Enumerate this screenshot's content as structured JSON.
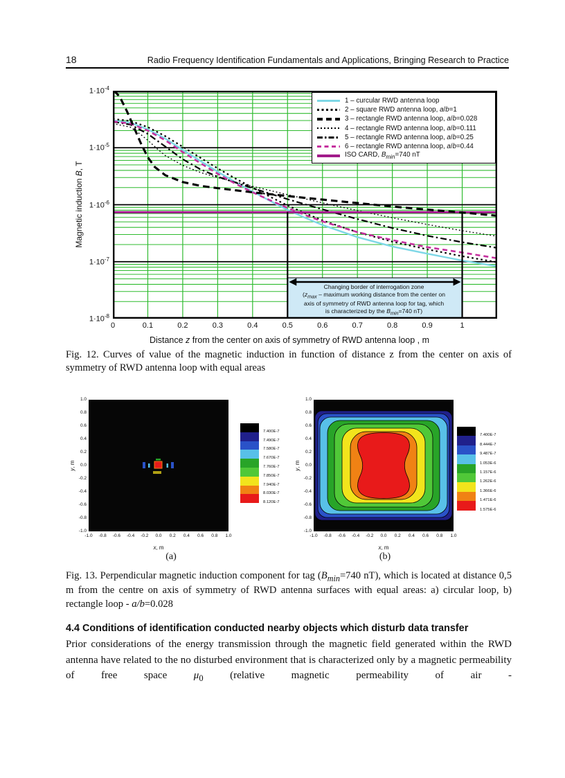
{
  "page": {
    "number": "18",
    "header_title": "Radio Frequency Identification Fundamentals and Applications, Bringing Research to Practice"
  },
  "fig12": {
    "ylabel_html": "Magnetic induction <i>B</i>, T",
    "xlabel_html": "Distance <i>z</i> from the center on axis of symmetry of RWD antenna loop ,  m",
    "y_tick_exponents": [
      "-4",
      "-5",
      "-6",
      "-7",
      "-8"
    ],
    "x_ticks": [
      "0",
      "0.1",
      "0.2",
      "0.3",
      "0.4",
      "0.5",
      "0.6",
      "0.7",
      "0.8",
      "0.9",
      "1"
    ],
    "legend": [
      {
        "id": "c1",
        "label_html": "1 – curcular RWD antenna loop"
      },
      {
        "id": "c2",
        "label_html": "2 – square RWD antenna loop, <i>a</i>/<i>b</i>=1"
      },
      {
        "id": "c3",
        "label_html": "3 – rectangle RWD antenna loop, <i>a</i>/<i>b</i>=0.028"
      },
      {
        "id": "c4",
        "label_html": "4 – rectangle RWD antenna loop, <i>a</i>/<i>b</i>=0.111"
      },
      {
        "id": "c5",
        "label_html": "5 – rectangle RWD antenna loop, <i>a</i>/<i>b</i>=0.25"
      },
      {
        "id": "c6",
        "label_html": "6 – rectangle RWD antenna loop, <i>a</i>/<i>b</i>=0.44"
      },
      {
        "id": "iso",
        "label_html": "ISO CARD, <i>B<sub>min</sub></i>=740 nT"
      }
    ],
    "annotation": {
      "lines_html": [
        "Changing border of interrogation zone",
        "(<i>z<sub>max</sub></i> – maximum working distance from the center on",
        "axis of symmetry of RWD antenna loop for tag, which",
        "is characterized by the <i>B<sub>min</sub></i>=740 nT)"
      ],
      "zone_from": 0.5,
      "zone_to": 1.0
    },
    "caption_html": "Fig. 12. Curves of value of the magnetic induction in function of distance z from the center on axis of symmetry of RWD antenna loop with equal areas",
    "chart_data": {
      "type": "line",
      "title": "",
      "xlabel": "Distance z from the center on axis of symmetry of RWD antenna loop, m",
      "ylabel": "Magnetic induction B, T",
      "xlim": [
        0,
        1.1
      ],
      "ylim": [
        1e-08,
        0.0001
      ],
      "y_scale": "log",
      "grid": true,
      "legend_position": "top-right",
      "iso_level": 7.4e-07,
      "series": [
        {
          "id": "c1",
          "name": "1 – curcular RWD antenna loop",
          "points": [
            [
              0,
              3e-05
            ],
            [
              0.05,
              2.75e-05
            ],
            [
              0.1,
              2.1e-05
            ],
            [
              0.15,
              1.45e-05
            ],
            [
              0.2,
              9.2e-06
            ],
            [
              0.25,
              5.9e-06
            ],
            [
              0.3,
              3.8e-06
            ],
            [
              0.35,
              2.5e-06
            ],
            [
              0.4,
              1.7e-06
            ],
            [
              0.45,
              1.17e-06
            ],
            [
              0.5,
              8.1e-07
            ],
            [
              0.55,
              5.9e-07
            ],
            [
              0.6,
              4.4e-07
            ],
            [
              0.7,
              2.7e-07
            ],
            [
              0.8,
              1.85e-07
            ],
            [
              0.9,
              1.38e-07
            ],
            [
              1.0,
              1.05e-07
            ],
            [
              1.1,
              8.3e-08
            ]
          ]
        },
        {
          "id": "c2",
          "name": "2 – square RWD antenna loop, a/b=1",
          "points": [
            [
              0,
              3.2e-05
            ],
            [
              0.05,
              2.95e-05
            ],
            [
              0.1,
              2.3e-05
            ],
            [
              0.15,
              1.6e-05
            ],
            [
              0.2,
              1.04e-05
            ],
            [
              0.25,
              6.7e-06
            ],
            [
              0.3,
              4.35e-06
            ],
            [
              0.35,
              2.9e-06
            ],
            [
              0.4,
              2e-06
            ],
            [
              0.45,
              1.38e-06
            ],
            [
              0.5,
              9.7e-07
            ],
            [
              0.55,
              7.1e-07
            ],
            [
              0.6,
              5.3e-07
            ],
            [
              0.7,
              3.3e-07
            ],
            [
              0.8,
              2.25e-07
            ],
            [
              0.9,
              1.65e-07
            ],
            [
              1.0,
              1.25e-07
            ],
            [
              1.1,
              9.8e-08
            ]
          ]
        },
        {
          "id": "c3",
          "name": "3 – rectangle RWD antenna loop, a/b=0.028",
          "points": [
            [
              0.004,
              0.0001
            ],
            [
              0.02,
              7.8e-05
            ],
            [
              0.04,
              4.4e-05
            ],
            [
              0.06,
              2.3e-05
            ],
            [
              0.08,
              1.2e-05
            ],
            [
              0.1,
              6.8e-06
            ],
            [
              0.12,
              4.6e-06
            ],
            [
              0.15,
              3.3e-06
            ],
            [
              0.2,
              2.5e-06
            ],
            [
              0.25,
              2.15e-06
            ],
            [
              0.3,
              1.95e-06
            ],
            [
              0.4,
              1.65e-06
            ],
            [
              0.5,
              1.42e-06
            ],
            [
              0.6,
              1.23e-06
            ],
            [
              0.7,
              1.07e-06
            ],
            [
              0.8,
              9.3e-07
            ],
            [
              0.9,
              8.2e-07
            ],
            [
              1.0,
              7.3e-07
            ],
            [
              1.1,
              6.4e-07
            ]
          ]
        },
        {
          "id": "c4",
          "name": "4 – rectangle RWD antenna loop, a/b=0.111",
          "points": [
            [
              0,
              2.65e-05
            ],
            [
              0.05,
              2.3e-05
            ],
            [
              0.08,
              1.7e-05
            ],
            [
              0.1,
              1.35e-05
            ],
            [
              0.13,
              9.2e-06
            ],
            [
              0.15,
              7.3e-06
            ],
            [
              0.2,
              4.9e-06
            ],
            [
              0.25,
              3.7e-06
            ],
            [
              0.3,
              3e-06
            ],
            [
              0.4,
              2.1e-06
            ],
            [
              0.5,
              1.5e-06
            ],
            [
              0.6,
              1.08e-06
            ],
            [
              0.7,
              7.9e-07
            ],
            [
              0.8,
              5.9e-07
            ],
            [
              0.9,
              4.5e-07
            ],
            [
              1.0,
              3.5e-07
            ],
            [
              1.1,
              2.8e-07
            ]
          ]
        },
        {
          "id": "c5",
          "name": "5 – rectangle RWD antenna loop, a/b=0.25",
          "points": [
            [
              0,
              2.85e-05
            ],
            [
              0.05,
              2.55e-05
            ],
            [
              0.1,
              1.75e-05
            ],
            [
              0.15,
              1.05e-05
            ],
            [
              0.2,
              6.3e-06
            ],
            [
              0.25,
              4.2e-06
            ],
            [
              0.3,
              3.1e-06
            ],
            [
              0.4,
              1.95e-06
            ],
            [
              0.5,
              1.25e-06
            ],
            [
              0.6,
              8.3e-07
            ],
            [
              0.7,
              5.6e-07
            ],
            [
              0.8,
              3.9e-07
            ],
            [
              0.9,
              2.85e-07
            ],
            [
              1.0,
              2.2e-07
            ],
            [
              1.1,
              1.75e-07
            ]
          ]
        },
        {
          "id": "c6",
          "name": "6 – rectangle RWD antenna loop, a/b=0.44",
          "points": [
            [
              0,
              2.9e-05
            ],
            [
              0.05,
              2.65e-05
            ],
            [
              0.1,
              2e-05
            ],
            [
              0.15,
              1.35e-05
            ],
            [
              0.2,
              8.4e-06
            ],
            [
              0.25,
              5.4e-06
            ],
            [
              0.3,
              3.5e-06
            ],
            [
              0.35,
              2.35e-06
            ],
            [
              0.4,
              1.65e-06
            ],
            [
              0.45,
              1.2e-06
            ],
            [
              0.5,
              8.8e-07
            ],
            [
              0.55,
              6.6e-07
            ],
            [
              0.6,
              5.1e-07
            ],
            [
              0.7,
              3.3e-07
            ],
            [
              0.8,
              2.4e-07
            ],
            [
              0.9,
              1.8e-07
            ],
            [
              1.0,
              1.45e-07
            ],
            [
              1.1,
              1.15e-07
            ]
          ]
        },
        {
          "id": "iso",
          "name": "ISO CARD, Bmin=740 nT",
          "points": [
            [
              0,
              7.4e-07
            ],
            [
              1.1,
              7.4e-07
            ]
          ]
        }
      ]
    }
  },
  "fig13": {
    "caption_html": "Fig. 13. Perpendicular magnetic induction component for tag (<i>B<sub>min</sub></i>=740 nT), which is located at distance 0,5 m from the centre on axis of symmetry of RWD antenna surfaces with equal areas: a) circular loop, b) rectangle loop - <i>a/b</i>=0.028",
    "colorbar_colors": [
      "#000000",
      "#20208c",
      "#2a52c8",
      "#58c0e8",
      "#28a428",
      "#50c838",
      "#f2e41c",
      "#f08214",
      "#e81a1a"
    ],
    "plot_a": {
      "label": "(a)",
      "xlabel_html": "<i>x</i>, m",
      "ylabel_html": "<i>y</i>, m",
      "x_ticks": [
        "-1.0",
        "-0.8",
        "-0.6",
        "-0.4",
        "-0.2",
        "0.0",
        "0.2",
        "0.4",
        "0.6",
        "0.8",
        "1.0"
      ],
      "y_ticks": [
        "1.0",
        "0.8",
        "0.6",
        "0.4",
        "0.2",
        "0.0",
        "-0.2",
        "-0.4",
        "-0.6",
        "-0.8",
        "-1.0"
      ],
      "colorbar_labels": [
        "7.400E-7",
        "7.490E-7",
        "7.580E-7",
        "7.670E-7",
        "7.760E-7",
        "7.850E-7",
        "7.940E-7",
        "8.030E-7",
        "8.120E-7"
      ],
      "chart_data": {
        "type": "heatmap",
        "x_range": [
          -1,
          1
        ],
        "y_range": [
          -1,
          1
        ],
        "levels": [
          7.4e-07,
          7.49e-07,
          7.58e-07,
          7.67e-07,
          7.76e-07,
          7.85e-07,
          7.94e-07,
          8.03e-07,
          8.12e-07
        ]
      }
    },
    "plot_b": {
      "label": "(b)",
      "xlabel_html": "<i>x</i>, m",
      "ylabel_html": "<i>y</i>, m",
      "x_ticks": [
        "-1.0",
        "-0.8",
        "-0.6",
        "-0.4",
        "-0.2",
        "0.0",
        "0.2",
        "0.4",
        "0.6",
        "0.8",
        "1.0"
      ],
      "y_ticks": [
        "1.0",
        "0.8",
        "0.6",
        "0.4",
        "0.2",
        "0.0",
        "-0.2",
        "-0.4",
        "-0.6",
        "-0.8",
        "-1.0"
      ],
      "colorbar_labels": [
        "7.400E-7",
        "8.444E-7",
        "9.487E-7",
        "1.053E-6",
        "1.157E-6",
        "1.262E-6",
        "1.366E-6",
        "1.471E-6",
        "1.575E-6"
      ],
      "chart_data": {
        "type": "heatmap",
        "x_range": [
          -1,
          1
        ],
        "y_range": [
          -1,
          1
        ],
        "levels": [
          7.4e-07,
          8.444e-07,
          9.487e-07,
          1.053e-06,
          1.157e-06,
          1.262e-06,
          1.366e-06,
          1.471e-06,
          1.575e-06
        ]
      }
    }
  },
  "section": {
    "heading": "4.4 Conditions of identification conducted nearby objects which disturb data transfer",
    "body_html": "Prior considerations of the energy transmission through the magnetic field generated within the RWD antenna have related to the no disturbed environment that is characterized only by a magnetic permeability of free space <i>μ</i><sub>0</sub> (relative magnetic permeability of air -"
  }
}
